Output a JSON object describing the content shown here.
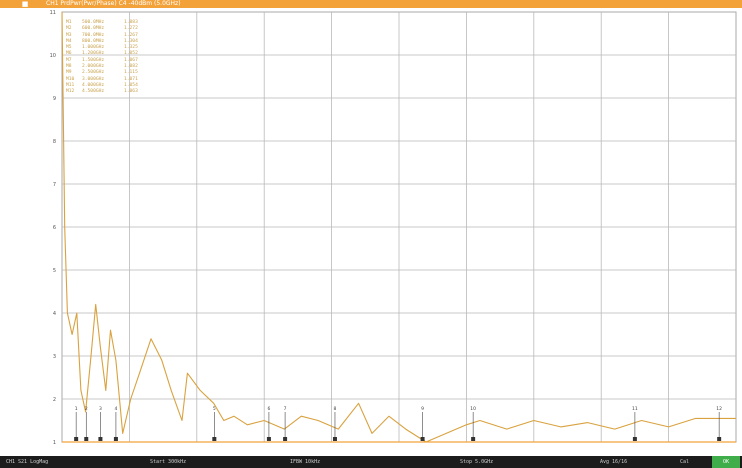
{
  "window": {
    "title": "CH1 PrdPwr(Pwr/Phase) C4 -40dBm (5.0GHz)",
    "icon": "orange-app-icon"
  },
  "colors": {
    "accent": "#f3a23a",
    "trace": "#d9a23f",
    "grid": "#b9b9b9",
    "marker_text": "#c9a24d",
    "status_ok": "#3fae4a"
  },
  "marker_table": [
    [
      "M1",
      "500.0MHz",
      "1.883"
    ],
    [
      "M2",
      "600.0MHz",
      "1.272"
    ],
    [
      "M3",
      "700.0MHz",
      "1.267"
    ],
    [
      "M4",
      "800.0MHz",
      "1.304"
    ],
    [
      "M5",
      "1.000GHz",
      "1.325"
    ],
    [
      "M6",
      "1.200GHz",
      "1.052"
    ],
    [
      "M7",
      "1.500GHz",
      "1.067"
    ],
    [
      "M8",
      "2.000GHz",
      "1.082"
    ],
    [
      "M9",
      "2.500GHz",
      "1.115"
    ],
    [
      "M10",
      "3.000GHz",
      "1.071"
    ],
    [
      "M11",
      "4.000GHz",
      "1.054"
    ],
    [
      "M12",
      "4.500GHz",
      "1.063"
    ]
  ],
  "chart_data": {
    "type": "line",
    "title": "",
    "xlabel": "",
    "ylabel": "",
    "xlim": [
      0,
      1
    ],
    "ylim": [
      1,
      11
    ],
    "y_ticks": [
      "1",
      "2",
      "3",
      "4",
      "5",
      "6",
      "7",
      "8",
      "9",
      "10",
      "11"
    ],
    "grid": true,
    "series": [
      {
        "values": [
          [
            0.0,
            11.0
          ],
          [
            0.004,
            6.0
          ],
          [
            0.008,
            4.0
          ],
          [
            0.015,
            3.5
          ],
          [
            0.022,
            4.0
          ],
          [
            0.028,
            2.2
          ],
          [
            0.035,
            1.7
          ],
          [
            0.043,
            3.0
          ],
          [
            0.05,
            4.2
          ],
          [
            0.057,
            3.2
          ],
          [
            0.065,
            2.2
          ],
          [
            0.072,
            3.6
          ],
          [
            0.08,
            2.9
          ],
          [
            0.09,
            1.2
          ],
          [
            0.102,
            2.0
          ],
          [
            0.115,
            2.6
          ],
          [
            0.132,
            3.4
          ],
          [
            0.148,
            2.9
          ],
          [
            0.162,
            2.2
          ],
          [
            0.178,
            1.5
          ],
          [
            0.186,
            2.6
          ],
          [
            0.205,
            2.2
          ],
          [
            0.225,
            1.9
          ],
          [
            0.24,
            1.5
          ],
          [
            0.255,
            1.6
          ],
          [
            0.275,
            1.4
          ],
          [
            0.3,
            1.5
          ],
          [
            0.33,
            1.3
          ],
          [
            0.355,
            1.6
          ],
          [
            0.38,
            1.5
          ],
          [
            0.41,
            1.3
          ],
          [
            0.44,
            1.9
          ],
          [
            0.46,
            1.2
          ],
          [
            0.485,
            1.6
          ],
          [
            0.51,
            1.3
          ],
          [
            0.54,
            1.0
          ],
          [
            0.57,
            1.2
          ],
          [
            0.6,
            1.4
          ],
          [
            0.62,
            1.5
          ],
          [
            0.66,
            1.3
          ],
          [
            0.7,
            1.5
          ],
          [
            0.74,
            1.35
          ],
          [
            0.78,
            1.45
          ],
          [
            0.82,
            1.3
          ],
          [
            0.86,
            1.5
          ],
          [
            0.9,
            1.35
          ],
          [
            0.94,
            1.55
          ],
          [
            1.0,
            1.55
          ]
        ]
      }
    ],
    "markers": [
      {
        "label": "1",
        "x": 0.021
      },
      {
        "label": "2",
        "x": 0.036
      },
      {
        "label": "3",
        "x": 0.057
      },
      {
        "label": "4",
        "x": 0.08
      },
      {
        "label": "5",
        "x": 0.226
      },
      {
        "label": "6",
        "x": 0.307
      },
      {
        "label": "7",
        "x": 0.331
      },
      {
        "label": "8",
        "x": 0.405
      },
      {
        "label": "9",
        "x": 0.535
      },
      {
        "label": "10",
        "x": 0.61
      },
      {
        "label": "11",
        "x": 0.85
      },
      {
        "label": "12",
        "x": 0.975
      }
    ]
  },
  "statusbar": {
    "segments": [
      "CH1  S21  LogMag",
      "Start 300kHz",
      "IFBW 10kHz",
      "Stop 5.0GHz",
      "Avg 16/16",
      "Cal",
      "OK"
    ]
  }
}
